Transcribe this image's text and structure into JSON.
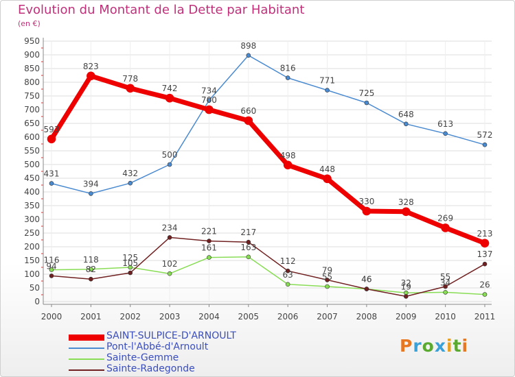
{
  "title": "Evolution du Montant de la Dette par Habitant",
  "unit_label": "(en €)",
  "brand": "Proxiti",
  "chart_data": {
    "type": "line",
    "x": [
      "2000",
      "2001",
      "2002",
      "2003",
      "2004",
      "2005",
      "2006",
      "2007",
      "2008",
      "2009",
      "2010",
      "2011"
    ],
    "ylim": [
      0,
      950
    ],
    "yticks": [
      0,
      50,
      100,
      150,
      200,
      250,
      300,
      350,
      400,
      450,
      500,
      550,
      600,
      650,
      700,
      750,
      800,
      850,
      900,
      950
    ],
    "grid": true,
    "legend_position": "bottom-left",
    "series": [
      {
        "name": "SAINT-SULPICE-D'ARNOULT",
        "color": "#ee0000",
        "values": [
          593,
          823,
          778,
          742,
          700,
          660,
          498,
          448,
          330,
          328,
          269,
          213
        ],
        "labels": [
          "593",
          "823",
          "778",
          "742",
          "700",
          "660",
          "498",
          "448",
          "330",
          "328",
          "269",
          "213"
        ]
      },
      {
        "name": "Pont-l'Abbé-d'Arnoult",
        "color": "#4a8ad0",
        "values": [
          431,
          394,
          432,
          500,
          734,
          898,
          816,
          771,
          725,
          648,
          613,
          572
        ],
        "labels": [
          "431",
          "394",
          "432",
          "500",
          "734",
          "898",
          "816",
          "771",
          "725",
          "648",
          "613",
          "572"
        ]
      },
      {
        "name": "Sainte-Gemme",
        "color": "#88dd55",
        "values": [
          116,
          118,
          125,
          102,
          161,
          163,
          63,
          55,
          46,
          32,
          34,
          26
        ],
        "labels": [
          "116",
          "118",
          "125",
          "102",
          "161",
          "163",
          "63",
          "55",
          "46",
          "32",
          "34",
          "26"
        ]
      },
      {
        "name": "Sainte-Radegonde",
        "color": "#702020",
        "values": [
          94,
          82,
          105,
          234,
          221,
          217,
          112,
          79,
          46,
          19,
          55,
          137
        ],
        "labels": [
          "94",
          "82",
          "105",
          "234",
          "221",
          "217",
          "112",
          "79",
          "46",
          "19",
          "55",
          "137"
        ]
      }
    ]
  }
}
